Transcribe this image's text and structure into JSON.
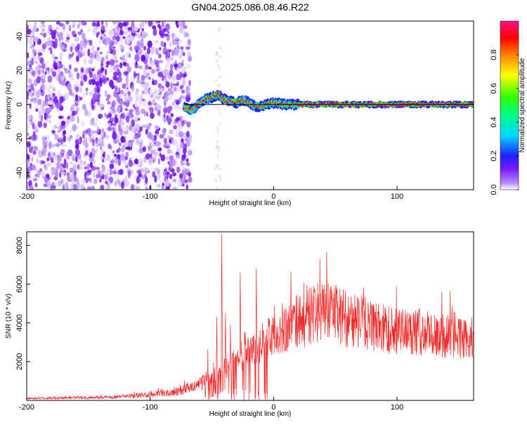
{
  "title": "GN04.2025.086.08.46.R22",
  "colors": {
    "snr_line": "#ee2a2a",
    "axis": "#000000",
    "fit_line": "#000000"
  },
  "chart_data": [
    {
      "type": "heatmap",
      "xlabel": "Height of straight line (km)",
      "ylabel": "Frequency (Hz)",
      "xlim": [
        -200,
        162
      ],
      "ylim": [
        -50,
        49
      ],
      "x_ticks": [
        -200,
        -100,
        0,
        100
      ],
      "y_ticks": [
        40,
        20,
        0,
        -20,
        -40
      ],
      "noise_region_x": [
        -200,
        -72
      ],
      "ridge_frequency": 0,
      "ridge_points": [
        {
          "x": -72,
          "y": -2
        },
        {
          "x": -65,
          "y": -3
        },
        {
          "x": -60,
          "y": 1
        },
        {
          "x": -55,
          "y": 3
        },
        {
          "x": -50,
          "y": 4
        },
        {
          "x": -45,
          "y": 6
        },
        {
          "x": -40,
          "y": 3
        },
        {
          "x": -35,
          "y": 2
        },
        {
          "x": -30,
          "y": 1
        },
        {
          "x": -25,
          "y": 3
        },
        {
          "x": -20,
          "y": 1
        },
        {
          "x": -15,
          "y": -1
        },
        {
          "x": -10,
          "y": -1
        },
        {
          "x": -5,
          "y": 0
        },
        {
          "x": 0,
          "y": 1
        },
        {
          "x": 10,
          "y": 0
        },
        {
          "x": 20,
          "y": 0
        },
        {
          "x": 40,
          "y": 0
        },
        {
          "x": 70,
          "y": 0
        },
        {
          "x": 100,
          "y": 0
        },
        {
          "x": 130,
          "y": 0
        },
        {
          "x": 162,
          "y": 0
        }
      ],
      "colorbar": {
        "label": "Normalized spectral amplitude",
        "range": [
          0,
          1
        ],
        "ticks": [
          "0.0",
          "0.2",
          "0.4",
          "0.6",
          "0.8"
        ]
      }
    },
    {
      "type": "line",
      "xlabel": "Height of straight line (km)",
      "ylabel": "SNR (10 * v/v)",
      "xlim": [
        -200,
        162
      ],
      "ylim": [
        0,
        8700
      ],
      "x_ticks": [
        -200,
        -100,
        0,
        100
      ],
      "y_ticks": [
        2000,
        4000,
        6000,
        8000
      ],
      "envelope": {
        "x": [
          -200,
          -150,
          -120,
          -100,
          -80,
          -65,
          -55,
          -45,
          -35,
          -25,
          -15,
          -5,
          5,
          15,
          25,
          35,
          45,
          60,
          80,
          100,
          120,
          140,
          162
        ],
        "y": [
          100,
          150,
          200,
          300,
          450,
          700,
          1100,
          1500,
          1800,
          2300,
          2700,
          3200,
          3600,
          3900,
          4200,
          4500,
          4600,
          4200,
          3800,
          3600,
          3500,
          3300,
          3200
        ]
      },
      "spikes": [
        {
          "x": -53,
          "y": 4100
        },
        {
          "x": -49,
          "y": 3000
        },
        {
          "x": -46,
          "y": 4300
        },
        {
          "x": -42,
          "y": 8600
        },
        {
          "x": -39,
          "y": 4500
        },
        {
          "x": -35,
          "y": 3900
        },
        {
          "x": -31,
          "y": 3500
        },
        {
          "x": -27,
          "y": 6600
        },
        {
          "x": -23,
          "y": 3500
        },
        {
          "x": -14,
          "y": 6800
        },
        {
          "x": -9,
          "y": 4000
        }
      ]
    }
  ]
}
